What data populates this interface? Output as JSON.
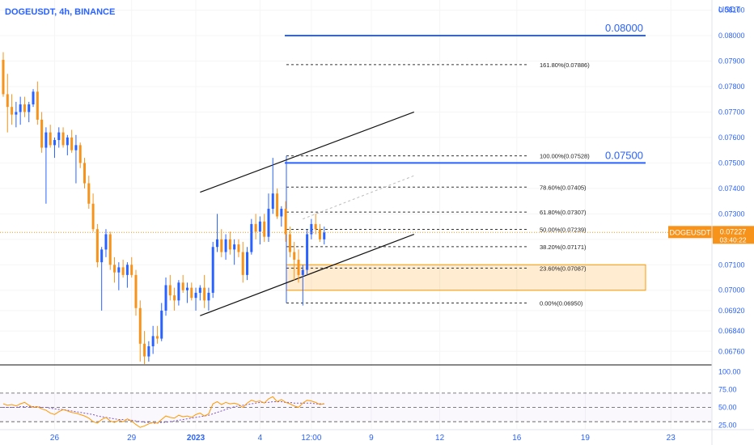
{
  "header": {
    "symbol_line": "DOGEUSDT, 4h, BINANCE",
    "unit": "USDT"
  },
  "chart_data": {
    "type": "candlestick",
    "symbol": "DOGEUSDT",
    "interval": "4h",
    "exchange": "BINANCE",
    "ylim": [
      0.0671,
      0.0814
    ],
    "price_ticks": [
      "0.08100",
      "0.08000",
      "0.07900",
      "0.07800",
      "0.07700",
      "0.07600",
      "0.07500",
      "0.07400",
      "0.07300",
      "0.07200",
      "0.07100",
      "0.07000",
      "0.06920",
      "0.06840",
      "0.06760"
    ],
    "x_ticks": [
      {
        "label": "26",
        "bar": 12
      },
      {
        "label": "29",
        "bar": 30
      },
      {
        "label": "2023",
        "bar": 45
      },
      {
        "label": "4",
        "bar": 60
      },
      {
        "label": "12:00",
        "bar": 72
      },
      {
        "label": "9",
        "bar": 86
      },
      {
        "label": "12",
        "bar": 102
      },
      {
        "label": "16",
        "bar": 120
      },
      {
        "label": "19",
        "bar": 136
      },
      {
        "label": "23",
        "bar": 156
      }
    ],
    "candles": [
      {
        "o": 0.07905,
        "h": 0.07935,
        "l": 0.0776,
        "c": 0.0777
      },
      {
        "o": 0.0777,
        "h": 0.0785,
        "l": 0.0762,
        "c": 0.0772
      },
      {
        "o": 0.0772,
        "h": 0.0777,
        "l": 0.0765,
        "c": 0.0769
      },
      {
        "o": 0.0769,
        "h": 0.0774,
        "l": 0.0764,
        "c": 0.077
      },
      {
        "o": 0.077,
        "h": 0.0776,
        "l": 0.0765,
        "c": 0.0773
      },
      {
        "o": 0.0773,
        "h": 0.0776,
        "l": 0.0768,
        "c": 0.077
      },
      {
        "o": 0.077,
        "h": 0.0774,
        "l": 0.0766,
        "c": 0.0773
      },
      {
        "o": 0.0773,
        "h": 0.0779,
        "l": 0.0772,
        "c": 0.0778
      },
      {
        "o": 0.0778,
        "h": 0.0782,
        "l": 0.0765,
        "c": 0.0767
      },
      {
        "o": 0.0767,
        "h": 0.077,
        "l": 0.0754,
        "c": 0.0756
      },
      {
        "o": 0.0756,
        "h": 0.0764,
        "l": 0.0734,
        "c": 0.0762
      },
      {
        "o": 0.0762,
        "h": 0.0765,
        "l": 0.0756,
        "c": 0.0757
      },
      {
        "o": 0.0757,
        "h": 0.076,
        "l": 0.0752,
        "c": 0.0759
      },
      {
        "o": 0.0759,
        "h": 0.0764,
        "l": 0.0756,
        "c": 0.0762
      },
      {
        "o": 0.0762,
        "h": 0.0764,
        "l": 0.0756,
        "c": 0.0757
      },
      {
        "o": 0.0757,
        "h": 0.0761,
        "l": 0.0753,
        "c": 0.076
      },
      {
        "o": 0.076,
        "h": 0.0763,
        "l": 0.0754,
        "c": 0.0755
      },
      {
        "o": 0.0755,
        "h": 0.0761,
        "l": 0.0742,
        "c": 0.0757
      },
      {
        "o": 0.0757,
        "h": 0.0758,
        "l": 0.0748,
        "c": 0.075
      },
      {
        "o": 0.075,
        "h": 0.0752,
        "l": 0.074,
        "c": 0.0742
      },
      {
        "o": 0.0742,
        "h": 0.0745,
        "l": 0.0732,
        "c": 0.0734
      },
      {
        "o": 0.0734,
        "h": 0.0738,
        "l": 0.0723,
        "c": 0.0724
      },
      {
        "o": 0.0724,
        "h": 0.0726,
        "l": 0.0709,
        "c": 0.0711
      },
      {
        "o": 0.0711,
        "h": 0.0717,
        "l": 0.0692,
        "c": 0.0716
      },
      {
        "o": 0.0716,
        "h": 0.0724,
        "l": 0.0713,
        "c": 0.0722
      },
      {
        "o": 0.0722,
        "h": 0.0723,
        "l": 0.0708,
        "c": 0.071
      },
      {
        "o": 0.071,
        "h": 0.0713,
        "l": 0.0703,
        "c": 0.0707
      },
      {
        "o": 0.0707,
        "h": 0.0711,
        "l": 0.07,
        "c": 0.0709
      },
      {
        "o": 0.0709,
        "h": 0.0712,
        "l": 0.0705,
        "c": 0.0706
      },
      {
        "o": 0.0706,
        "h": 0.0711,
        "l": 0.0701,
        "c": 0.071
      },
      {
        "o": 0.071,
        "h": 0.0713,
        "l": 0.0705,
        "c": 0.0706
      },
      {
        "o": 0.0706,
        "h": 0.0708,
        "l": 0.069,
        "c": 0.0693
      },
      {
        "o": 0.0693,
        "h": 0.0696,
        "l": 0.0672,
        "c": 0.0679
      },
      {
        "o": 0.0679,
        "h": 0.0684,
        "l": 0.0671,
        "c": 0.0674
      },
      {
        "o": 0.0674,
        "h": 0.068,
        "l": 0.0672,
        "c": 0.0678
      },
      {
        "o": 0.0678,
        "h": 0.0686,
        "l": 0.0675,
        "c": 0.0682
      },
      {
        "o": 0.0682,
        "h": 0.0686,
        "l": 0.0679,
        "c": 0.0681
      },
      {
        "o": 0.0681,
        "h": 0.0695,
        "l": 0.068,
        "c": 0.0692
      },
      {
        "o": 0.0692,
        "h": 0.0705,
        "l": 0.069,
        "c": 0.0702
      },
      {
        "o": 0.0702,
        "h": 0.0706,
        "l": 0.0696,
        "c": 0.0698
      },
      {
        "o": 0.0698,
        "h": 0.0701,
        "l": 0.0692,
        "c": 0.0696
      },
      {
        "o": 0.0696,
        "h": 0.0704,
        "l": 0.0694,
        "c": 0.0703
      },
      {
        "o": 0.0703,
        "h": 0.0706,
        "l": 0.0699,
        "c": 0.07
      },
      {
        "o": 0.07,
        "h": 0.0703,
        "l": 0.0695,
        "c": 0.0701
      },
      {
        "o": 0.0701,
        "h": 0.0703,
        "l": 0.0696,
        "c": 0.0697
      },
      {
        "o": 0.0697,
        "h": 0.0701,
        "l": 0.0692,
        "c": 0.0699
      },
      {
        "o": 0.0699,
        "h": 0.0702,
        "l": 0.0696,
        "c": 0.0701
      },
      {
        "o": 0.0701,
        "h": 0.0706,
        "l": 0.0693,
        "c": 0.0696
      },
      {
        "o": 0.0696,
        "h": 0.0701,
        "l": 0.0692,
        "c": 0.0699
      },
      {
        "o": 0.0699,
        "h": 0.0719,
        "l": 0.0697,
        "c": 0.0717
      },
      {
        "o": 0.0717,
        "h": 0.073,
        "l": 0.0715,
        "c": 0.072
      },
      {
        "o": 0.072,
        "h": 0.0724,
        "l": 0.0713,
        "c": 0.0715
      },
      {
        "o": 0.0715,
        "h": 0.0722,
        "l": 0.0712,
        "c": 0.072
      },
      {
        "o": 0.072,
        "h": 0.0723,
        "l": 0.0714,
        "c": 0.0716
      },
      {
        "o": 0.0716,
        "h": 0.072,
        "l": 0.071,
        "c": 0.0718
      },
      {
        "o": 0.0718,
        "h": 0.072,
        "l": 0.0713,
        "c": 0.0715
      },
      {
        "o": 0.0715,
        "h": 0.0719,
        "l": 0.0703,
        "c": 0.0706
      },
      {
        "o": 0.0706,
        "h": 0.0717,
        "l": 0.0704,
        "c": 0.0715
      },
      {
        "o": 0.0715,
        "h": 0.0728,
        "l": 0.0714,
        "c": 0.0726
      },
      {
        "o": 0.0726,
        "h": 0.073,
        "l": 0.072,
        "c": 0.0723
      },
      {
        "o": 0.0723,
        "h": 0.0729,
        "l": 0.0718,
        "c": 0.0727
      },
      {
        "o": 0.0727,
        "h": 0.073,
        "l": 0.0719,
        "c": 0.0721
      },
      {
        "o": 0.0721,
        "h": 0.0738,
        "l": 0.0719,
        "c": 0.0732
      },
      {
        "o": 0.0732,
        "h": 0.0752,
        "l": 0.073,
        "c": 0.0738
      },
      {
        "o": 0.0738,
        "h": 0.074,
        "l": 0.0728,
        "c": 0.0729
      },
      {
        "o": 0.0729,
        "h": 0.0733,
        "l": 0.0725,
        "c": 0.0732
      },
      {
        "o": 0.0732,
        "h": 0.0735,
        "l": 0.0719,
        "c": 0.0722
      },
      {
        "o": 0.0722,
        "h": 0.0725,
        "l": 0.0713,
        "c": 0.0715
      },
      {
        "o": 0.0715,
        "h": 0.0719,
        "l": 0.0704,
        "c": 0.0712
      },
      {
        "o": 0.0712,
        "h": 0.0716,
        "l": 0.0703,
        "c": 0.0706
      },
      {
        "o": 0.0706,
        "h": 0.071,
        "l": 0.0694,
        "c": 0.0708
      },
      {
        "o": 0.0708,
        "h": 0.0724,
        "l": 0.0706,
        "c": 0.0722
      },
      {
        "o": 0.0722,
        "h": 0.0728,
        "l": 0.072,
        "c": 0.0726
      },
      {
        "o": 0.0726,
        "h": 0.073,
        "l": 0.0722,
        "c": 0.0724
      },
      {
        "o": 0.0724,
        "h": 0.0726,
        "l": 0.0719,
        "c": 0.072
      },
      {
        "o": 0.072,
        "h": 0.0725,
        "l": 0.0718,
        "c": 0.07227
      }
    ],
    "last_price": {
      "label": "DOGEUSDT",
      "value": "0.07227",
      "countdown": "03:40:22"
    },
    "horizontal_levels": [
      {
        "price": 0.08,
        "label": "0.08000",
        "color": "#2962ff"
      },
      {
        "price": 0.075,
        "label": "0.07500",
        "color": "#2962ff"
      }
    ],
    "fib_levels": [
      {
        "price": 0.07886,
        "label": "161.80%(0.07886)"
      },
      {
        "price": 0.07528,
        "label": "100.00%(0.07528)"
      },
      {
        "price": 0.07405,
        "label": "78.60%(0.07405)"
      },
      {
        "price": 0.07307,
        "label": "61.80%(0.07307)"
      },
      {
        "price": 0.07239,
        "label": "50.00%(0.07239)"
      },
      {
        "price": 0.07171,
        "label": "38.20%(0.07171)"
      },
      {
        "price": 0.07087,
        "label": "23.60%(0.07087)"
      },
      {
        "price": 0.0695,
        "label": "0.00%(0.06950)"
      }
    ],
    "support_zone": {
      "top": 0.071,
      "bottom": 0.07,
      "color": "#ff9800"
    },
    "channel": {
      "upper": [
        {
          "bar": 46,
          "price": 0.07385
        },
        {
          "bar": 96,
          "price": 0.077
        }
      ],
      "lower": [
        {
          "bar": 46,
          "price": 0.069
        },
        {
          "bar": 96,
          "price": 0.0722
        }
      ],
      "mid": [
        {
          "bar": 70,
          "price": 0.0728
        },
        {
          "bar": 96,
          "price": 0.0745
        }
      ]
    },
    "rsi": {
      "ticks": [
        "100.00",
        "75.00",
        "50.00",
        "25.00"
      ],
      "levels": [
        70,
        50,
        30
      ],
      "values": [
        55,
        53,
        54,
        52,
        55,
        57,
        53,
        50,
        51,
        48,
        46,
        42,
        40,
        44,
        47,
        45,
        43,
        42,
        40,
        38,
        35,
        30,
        28,
        33,
        36,
        31,
        29,
        32,
        30,
        34,
        31,
        26,
        22,
        24,
        27,
        29,
        28,
        33,
        38,
        36,
        35,
        39,
        37,
        38,
        36,
        40,
        42,
        38,
        41,
        55,
        58,
        54,
        57,
        55,
        56,
        54,
        50,
        56,
        60,
        58,
        59,
        56,
        62,
        65,
        58,
        61,
        57,
        55,
        52,
        50,
        56,
        60,
        59,
        57,
        54,
        55
      ],
      "ma_values": [
        50,
        50,
        50,
        50,
        51,
        51,
        51,
        51,
        51,
        50,
        50,
        49,
        48,
        47,
        47,
        46,
        45,
        44,
        43,
        42,
        41,
        40,
        38,
        37,
        36,
        35,
        34,
        33,
        33,
        32,
        32,
        31,
        30,
        29,
        29,
        28,
        28,
        29,
        29,
        30,
        31,
        32,
        33,
        34,
        35,
        36,
        37,
        38,
        39,
        41,
        43,
        45,
        47,
        49,
        51,
        52,
        53,
        54,
        55,
        56,
        57,
        57,
        57,
        58,
        58,
        58,
        57,
        57,
        56,
        56,
        56,
        56,
        56,
        55,
        55,
        55
      ],
      "line_color": "#ff9800",
      "ma_color": "#7e57c2"
    }
  }
}
